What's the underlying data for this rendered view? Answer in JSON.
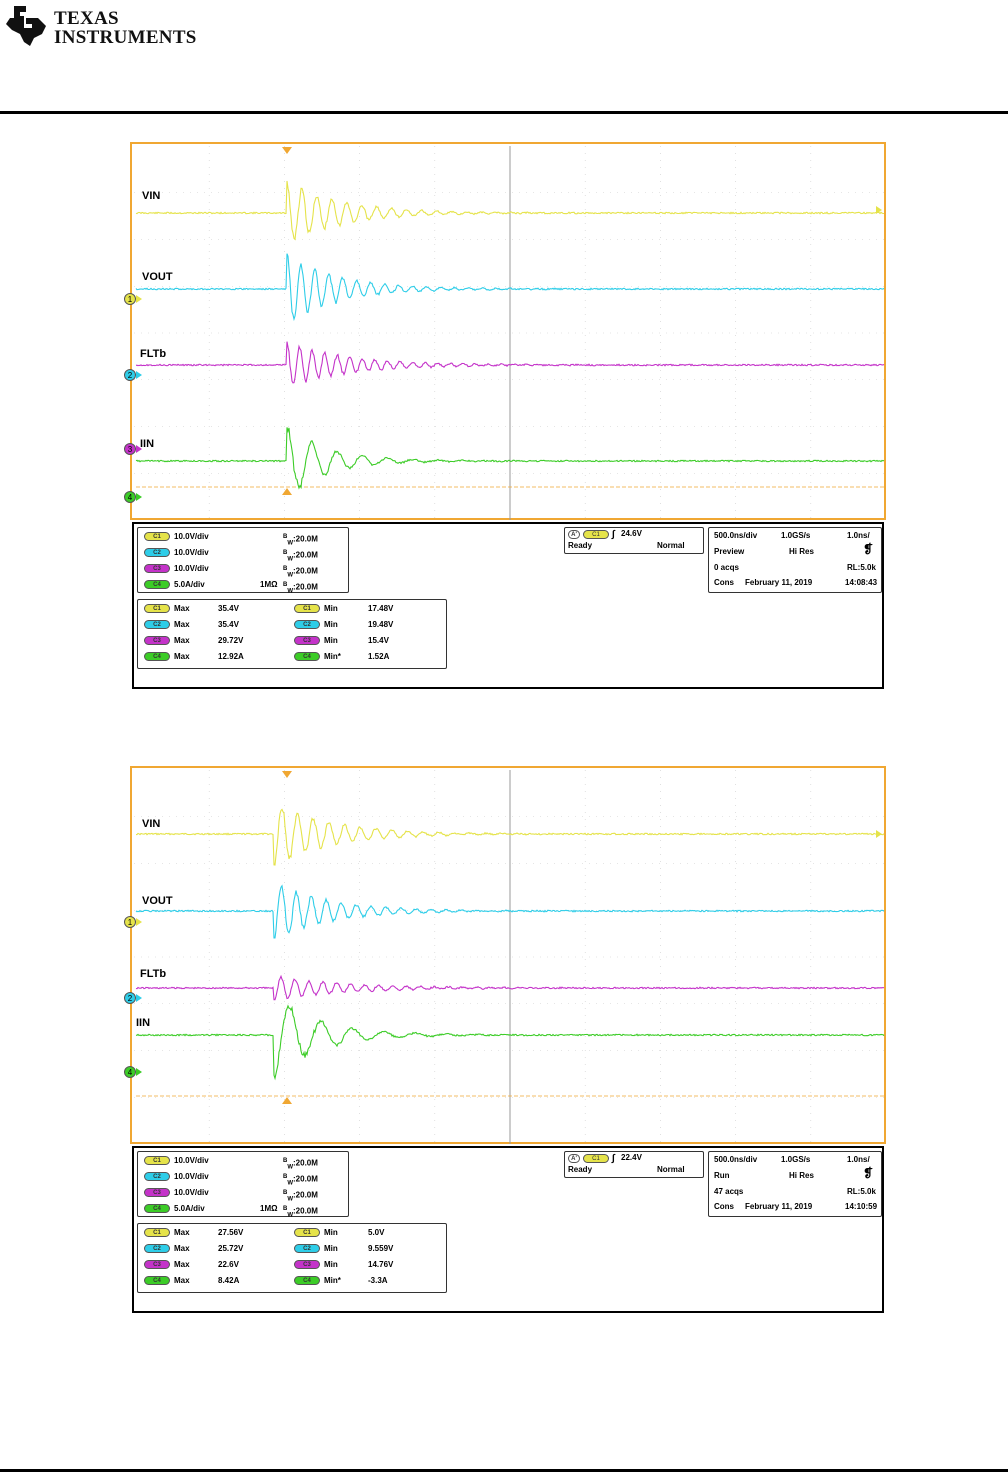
{
  "header": {
    "logo_line1": "Texas",
    "logo_line2": "Instruments",
    "logo_icon": "texas-state-icon"
  },
  "colors": {
    "c1": "#e5e34a",
    "c2": "#2ecde8",
    "c3": "#c433c9",
    "c4": "#3ccc27",
    "grid_border": "#f0a732",
    "trigger": "#f0a732"
  },
  "scopes": [
    {
      "id": "scope1",
      "top": 142,
      "labels": {
        "vin": "VIN",
        "vout": "VOUT",
        "fltb": "FLTb",
        "iin": "IIN"
      },
      "channel_markers": [
        "1",
        "2",
        "3",
        "4"
      ],
      "channels": [
        {
          "pill": "C1",
          "scale": "10.0V/div",
          "bw": "B",
          "bw_sub": "W",
          "bw_val": ":20.0M",
          "impedance": ""
        },
        {
          "pill": "C2",
          "scale": "10.0V/div",
          "bw": "B",
          "bw_sub": "W",
          "bw_val": ":20.0M",
          "impedance": ""
        },
        {
          "pill": "C3",
          "scale": "10.0V/div",
          "bw": "B",
          "bw_sub": "W",
          "bw_val": ":20.0M",
          "impedance": ""
        },
        {
          "pill": "C4",
          "scale": "5.0A/div",
          "bw": "B",
          "bw_sub": "W",
          "bw_val": ":20.0M",
          "impedance": "1MΩ"
        }
      ],
      "trigger": {
        "a": "A'",
        "pill": "C1",
        "level": "24.6V",
        "state": "Ready",
        "mode": "Normal"
      },
      "acq": {
        "timebase": "500.0ns/div",
        "rate": "1.0GS/s",
        "res": "1.0ns/",
        "mode": "Preview",
        "hires": "Hi Res",
        "acqs": "0 acqs",
        "rl": "RL:5.0k",
        "cons": "Cons",
        "date": "February 11, 2019",
        "time": "14:08:43"
      },
      "measurements": [
        {
          "pill": "C1",
          "k1": "Max",
          "v1": "35.4V",
          "pill2": "C1",
          "k2": "Min",
          "v2": "17.48V"
        },
        {
          "pill": "C2",
          "k1": "Max",
          "v1": "35.4V",
          "pill2": "C2",
          "k2": "Min",
          "v2": "19.48V"
        },
        {
          "pill": "C3",
          "k1": "Max",
          "v1": "29.72V",
          "pill2": "C3",
          "k2": "Min",
          "v2": "15.4V"
        },
        {
          "pill": "C4",
          "k1": "Max",
          "v1": "12.92A",
          "pill2": "C4",
          "k2": "Min*",
          "v2": "1.52A"
        }
      ]
    },
    {
      "id": "scope2",
      "top": 766,
      "labels": {
        "vin": "VIN",
        "vout": "VOUT",
        "fltb": "FLTb",
        "iin": "IIN"
      },
      "channel_markers": [
        "1",
        "2",
        "4"
      ],
      "channels": [
        {
          "pill": "C1",
          "scale": "10.0V/div",
          "bw": "B",
          "bw_sub": "W",
          "bw_val": ":20.0M",
          "impedance": ""
        },
        {
          "pill": "C2",
          "scale": "10.0V/div",
          "bw": "B",
          "bw_sub": "W",
          "bw_val": ":20.0M",
          "impedance": ""
        },
        {
          "pill": "C3",
          "scale": "10.0V/div",
          "bw": "B",
          "bw_sub": "W",
          "bw_val": ":20.0M",
          "impedance": ""
        },
        {
          "pill": "C4",
          "scale": "5.0A/div",
          "bw": "B",
          "bw_sub": "W",
          "bw_val": ":20.0M",
          "impedance": "1MΩ"
        }
      ],
      "trigger": {
        "a": "A'",
        "pill": "C1",
        "level": "22.4V",
        "state": "Ready",
        "mode": "Normal"
      },
      "acq": {
        "timebase": "500.0ns/div",
        "rate": "1.0GS/s",
        "res": "1.0ns/",
        "mode": "Run",
        "hires": "Hi Res",
        "acqs": "47 acqs",
        "rl": "RL:5.0k",
        "cons": "Cons",
        "date": "February 11, 2019",
        "time": "14:10:59"
      },
      "measurements": [
        {
          "pill": "C1",
          "k1": "Max",
          "v1": "27.56V",
          "pill2": "C1",
          "k2": "Min",
          "v2": "5.0V"
        },
        {
          "pill": "C2",
          "k1": "Max",
          "v1": "25.72V",
          "pill2": "C2",
          "k2": "Min",
          "v2": "9.559V"
        },
        {
          "pill": "C3",
          "k1": "Max",
          "v1": "22.6V",
          "pill2": "C3",
          "k2": "Min",
          "v2": "14.76V"
        },
        {
          "pill": "C4",
          "k1": "Max",
          "v1": "8.42A",
          "pill2": "C4",
          "k2": "Min*",
          "v2": "-3.3A"
        }
      ]
    }
  ]
}
